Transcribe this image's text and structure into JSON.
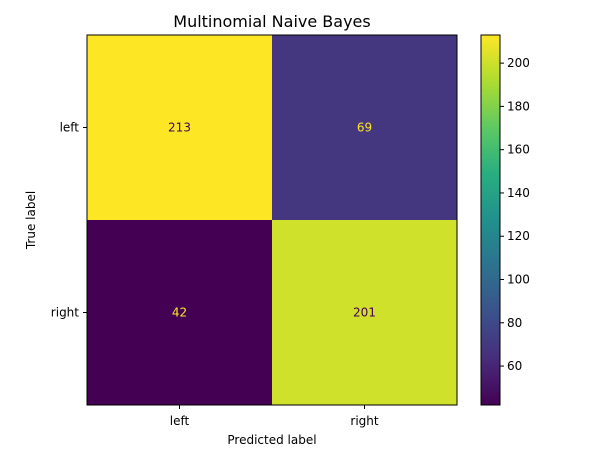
{
  "chart_data": {
    "type": "heatmap",
    "title": "Multinomial Naive Bayes",
    "xlabel": "Predicted label",
    "ylabel": "True label",
    "x_categories": [
      "left",
      "right"
    ],
    "y_categories": [
      "left",
      "right"
    ],
    "values": [
      [
        213,
        69
      ],
      [
        42,
        201
      ]
    ],
    "colormap": "viridis",
    "colorbar": {
      "range": [
        42,
        213
      ],
      "ticks": [
        60,
        80,
        100,
        120,
        140,
        160,
        180,
        200
      ]
    },
    "grid": false,
    "legend": "none"
  }
}
